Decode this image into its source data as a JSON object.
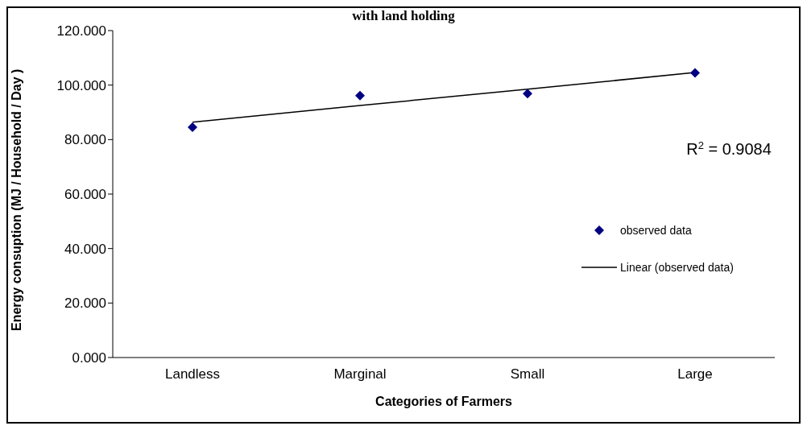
{
  "chart_data": {
    "type": "scatter",
    "title": "with land holding",
    "xlabel": "Categories of Farmers",
    "ylabel": "Energy consuption (MJ / Household / Day )",
    "categories": [
      "Landless",
      "Marginal",
      "Small",
      "Large"
    ],
    "series": [
      {
        "name": "observed data",
        "color": "#000080",
        "marker": "diamond",
        "values": [
          84.5,
          96.1,
          96.9,
          104.5
        ]
      },
      {
        "name": "Linear (observed data)",
        "type": "line",
        "color": "#000000",
        "marker": "none",
        "line_style": "solid",
        "values": [
          86.4,
          92.5,
          98.5,
          104.6
        ]
      }
    ],
    "ylim": [
      0,
      120
    ],
    "yticks": [
      {
        "value": 0,
        "label": "0.000"
      },
      {
        "value": 20,
        "label": "20.000"
      },
      {
        "value": 40,
        "label": "40.000"
      },
      {
        "value": 60,
        "label": "60.000"
      },
      {
        "value": 80,
        "label": "80.000"
      },
      {
        "value": 100,
        "label": "100.000"
      },
      {
        "value": 120,
        "label": "120.000"
      }
    ],
    "annotations": [
      "R$^{2}$ = 0.9084"
    ],
    "grid": false,
    "legend": "right"
  }
}
